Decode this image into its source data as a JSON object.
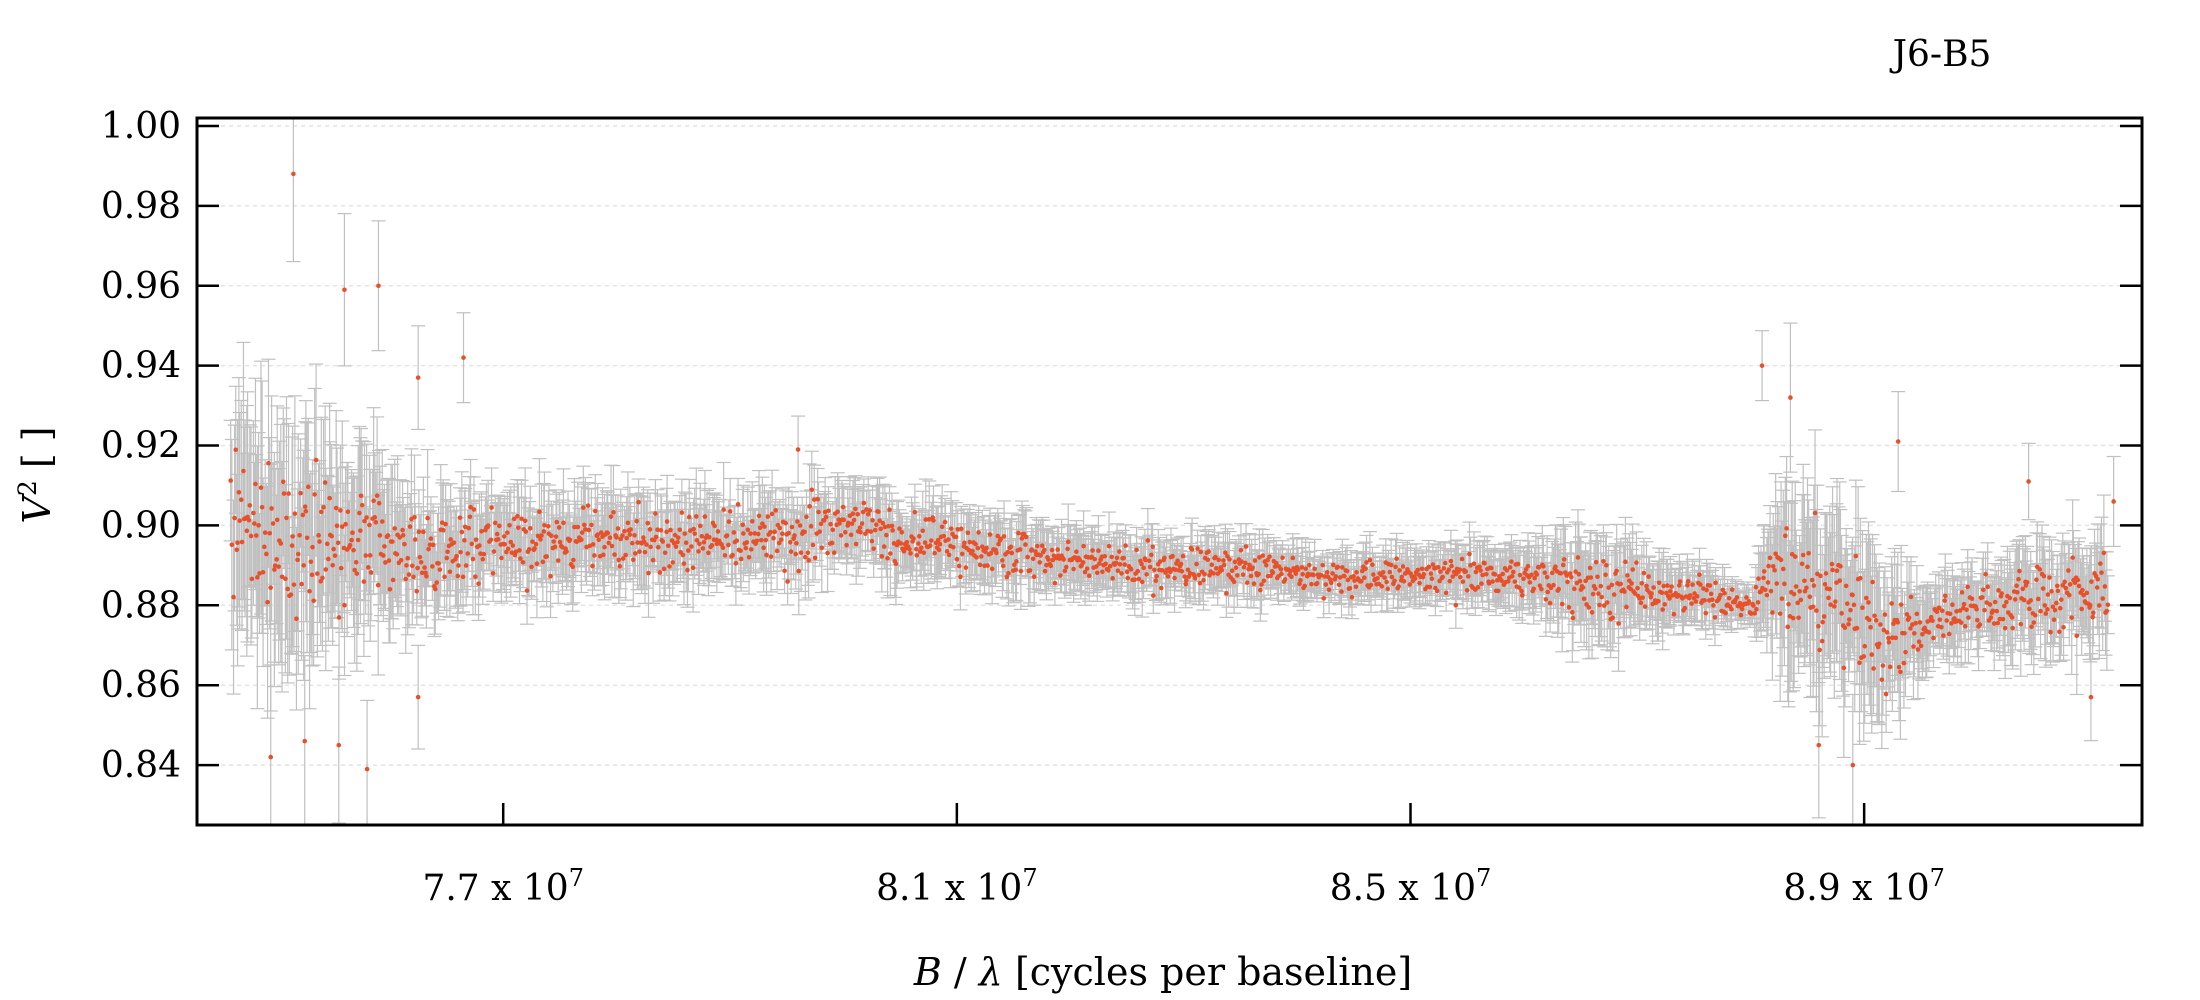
{
  "chart_data": {
    "type": "scatter",
    "title": "J6-B5",
    "xlabel": {
      "var": "B",
      "sep": " / ",
      "sym": "λ",
      "unit": " [cycles per baseline]"
    },
    "ylabel": {
      "var": "V",
      "sup": "2",
      "unit": " [ ]"
    },
    "xlim": [
      74300000,
      91450000
    ],
    "ylim": [
      0.825,
      1.002
    ],
    "x_ticks": [
      {
        "value": 77000000,
        "mant": "7.7 x 10",
        "exp": "7"
      },
      {
        "value": 81000000,
        "mant": "8.1 x 10",
        "exp": "7"
      },
      {
        "value": 85000000,
        "mant": "8.5 x 10",
        "exp": "7"
      },
      {
        "value": 89000000,
        "mant": "8.9 x 10",
        "exp": "7"
      }
    ],
    "y_ticks": [
      {
        "value": 0.84,
        "label": "0.84"
      },
      {
        "value": 0.86,
        "label": "0.86"
      },
      {
        "value": 0.88,
        "label": "0.88"
      },
      {
        "value": 0.9,
        "label": "0.90"
      },
      {
        "value": 0.92,
        "label": "0.92"
      },
      {
        "value": 0.94,
        "label": "0.94"
      },
      {
        "value": 0.96,
        "label": "0.96"
      },
      {
        "value": 0.98,
        "label": "0.98"
      },
      {
        "value": 1.0,
        "label": "1.00"
      }
    ],
    "grid": true,
    "colors": {
      "point": "#e8502a",
      "errorbar": "#c0c0c0",
      "grid": "#e4e4e4",
      "axis": "#000000"
    },
    "series": [
      {
        "x_range": [
          74600000,
          91150000
        ],
        "trend": [
          [
            74600000,
            0.9
          ],
          [
            75500000,
            0.896
          ],
          [
            76500000,
            0.893
          ],
          [
            77500000,
            0.897
          ],
          [
            78500000,
            0.896
          ],
          [
            79500000,
            0.897
          ],
          [
            80000000,
            0.9
          ],
          [
            80500000,
            0.897
          ],
          [
            81500000,
            0.893
          ],
          [
            82500000,
            0.89
          ],
          [
            83500000,
            0.889
          ],
          [
            84500000,
            0.887
          ],
          [
            85500000,
            0.888
          ],
          [
            86500000,
            0.886
          ],
          [
            87500000,
            0.882
          ],
          [
            88000000,
            0.88
          ],
          [
            88300000,
            0.886
          ],
          [
            88800000,
            0.882
          ],
          [
            89200000,
            0.87
          ],
          [
            89600000,
            0.876
          ],
          [
            90000000,
            0.879
          ],
          [
            91150000,
            0.885
          ]
        ],
        "scatter": [
          [
            74600000,
            0.02
          ],
          [
            75500000,
            0.016
          ],
          [
            76300000,
            0.01
          ],
          [
            77000000,
            0.008
          ],
          [
            81000000,
            0.006
          ],
          [
            83000000,
            0.005
          ],
          [
            84500000,
            0.004
          ],
          [
            86000000,
            0.005
          ],
          [
            86500000,
            0.008
          ],
          [
            87200000,
            0.006
          ],
          [
            88000000,
            0.003
          ],
          [
            88300000,
            0.015
          ],
          [
            89000000,
            0.014
          ],
          [
            89600000,
            0.006
          ],
          [
            91150000,
            0.009
          ]
        ],
        "errorbar_scale": 1.25,
        "outliers": [
          [
            75150000,
            0.988
          ],
          [
            75600000,
            0.959
          ],
          [
            75900000,
            0.96
          ],
          [
            76250000,
            0.937
          ],
          [
            76650000,
            0.942
          ],
          [
            74950000,
            0.842
          ],
          [
            75250000,
            0.846
          ],
          [
            75550000,
            0.845
          ],
          [
            75800000,
            0.839
          ],
          [
            76250000,
            0.857
          ],
          [
            79600000,
            0.919
          ],
          [
            85400000,
            0.88
          ],
          [
            88100000,
            0.94
          ],
          [
            88350000,
            0.932
          ],
          [
            88600000,
            0.845
          ],
          [
            88900000,
            0.84
          ],
          [
            89300000,
            0.921
          ],
          [
            90450000,
            0.911
          ],
          [
            91000000,
            0.857
          ],
          [
            91200000,
            0.906
          ]
        ]
      }
    ]
  }
}
